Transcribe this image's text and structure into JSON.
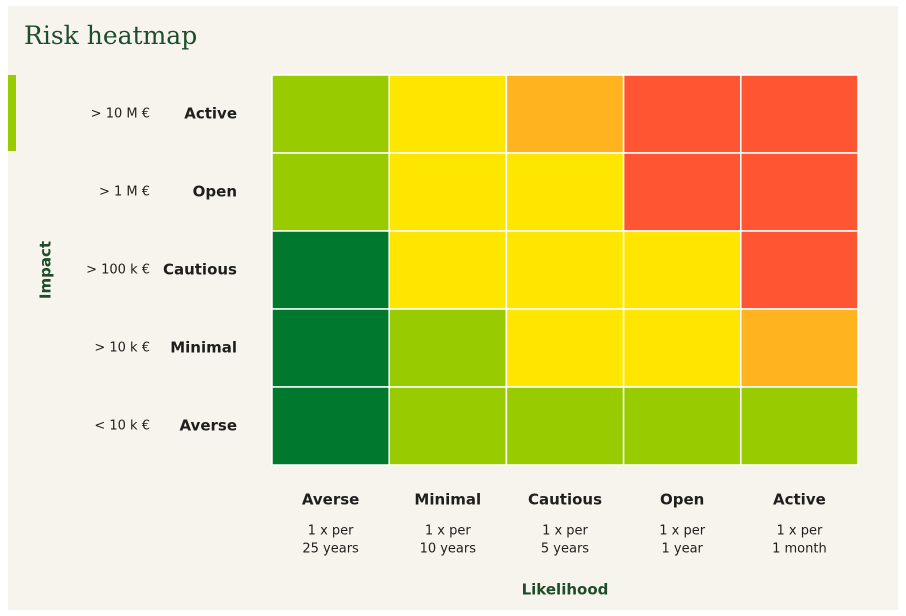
{
  "title": "Risk heatmap",
  "y_axis_label": "Impact",
  "x_axis_label": "Likelihood",
  "rows": [
    {
      "amount": "> 10 M €",
      "label": "Active"
    },
    {
      "amount": "> 1 M €",
      "label": "Open"
    },
    {
      "amount": "> 100 k €",
      "label": "Cautious"
    },
    {
      "amount": "> 10 k €",
      "label": "Minimal"
    },
    {
      "amount": "< 10 k €",
      "label": "Averse"
    }
  ],
  "columns": [
    {
      "label": "Averse",
      "frequency": [
        "1 x per",
        "25 years"
      ]
    },
    {
      "label": "Minimal",
      "frequency": [
        "1 x per",
        "10 years"
      ]
    },
    {
      "label": "Cautious",
      "frequency": [
        "1 x per",
        "5 years"
      ]
    },
    {
      "label": "Open",
      "frequency": [
        "1 x per",
        "1 year"
      ]
    },
    {
      "label": "Active",
      "frequency": [
        "1 x per",
        "1 month"
      ]
    }
  ],
  "cells": [
    [
      "#99cc00",
      "#ffe600",
      "#ffb31f",
      "#ff5533",
      "#ff5533"
    ],
    [
      "#99cc00",
      "#ffe600",
      "#ffe600",
      "#ff5533",
      "#ff5533"
    ],
    [
      "#00782d",
      "#ffe600",
      "#ffe600",
      "#ffe600",
      "#ff5533"
    ],
    [
      "#00782d",
      "#99cc00",
      "#ffe600",
      "#ffe600",
      "#ffb31f"
    ],
    [
      "#00782d",
      "#99cc00",
      "#99cc00",
      "#99cc00",
      "#99cc00"
    ]
  ]
}
